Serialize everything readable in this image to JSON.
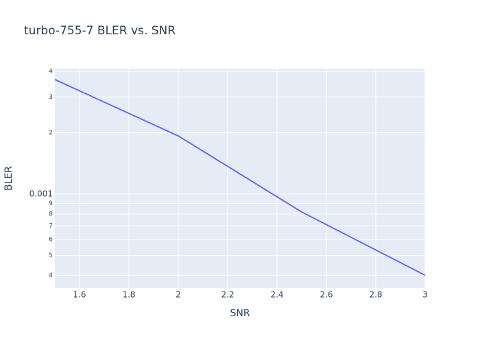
{
  "chart_data": {
    "type": "line",
    "title": "turbo-755-7 BLER vs. SNR",
    "x_label": "SNR",
    "y_label": "BLER",
    "x": [
      1.5,
      2,
      2.5,
      3
    ],
    "series": [
      {
        "name": "BLER",
        "color": "#636efa",
        "values": [
          0.00365,
          0.00193,
          0.000818,
          0.0004
        ]
      }
    ],
    "xlim": [
      1.5,
      3
    ],
    "xticks": [
      1.6,
      1.8,
      2,
      2.2,
      2.4,
      2.6,
      2.8,
      3
    ],
    "ylim": [
      0.000346,
      0.00413
    ],
    "log_y": true,
    "grid": true,
    "yticks": [
      {
        "value": 0.0004,
        "label": "4"
      },
      {
        "value": 0.0005,
        "label": "5"
      },
      {
        "value": 0.0006,
        "label": "6"
      },
      {
        "value": 0.0007,
        "label": "7"
      },
      {
        "value": 0.0008,
        "label": "8"
      },
      {
        "value": 0.0009,
        "label": "9"
      },
      0.001,
      {
        "value": 0.002,
        "label": "2"
      },
      {
        "value": 0.003,
        "label": "3"
      },
      {
        "value": 0.004,
        "label": "4"
      }
    ]
  }
}
